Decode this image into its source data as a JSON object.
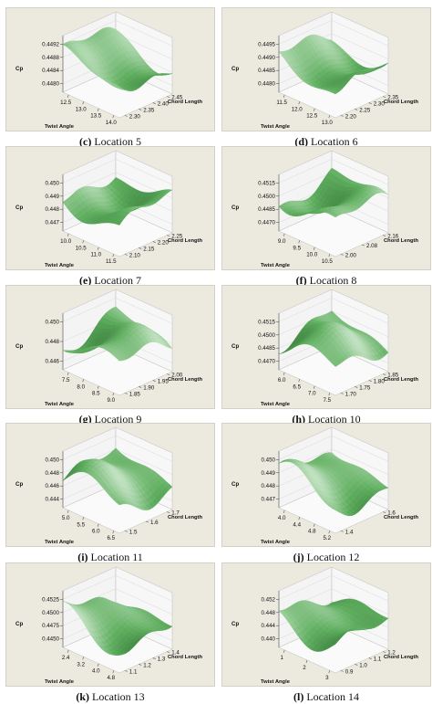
{
  "figure": {
    "panels": [
      {
        "letter": "(c)",
        "caption": "Location 5",
        "cp_ticks": [
          "0.4492",
          "0.4488",
          "0.4484",
          "0.4480"
        ],
        "twist_ticks": [
          "12.5",
          "13.0",
          "13.5",
          "14.0"
        ],
        "chord_ticks": [
          "2.45",
          "2.40",
          "2.35",
          "2.30"
        ]
      },
      {
        "letter": "(d)",
        "caption": "Location 6",
        "cp_ticks": [
          "0.4495",
          "0.4490",
          "0.4485",
          "0.4480"
        ],
        "twist_ticks": [
          "11.5",
          "12.0",
          "12.5",
          "13.0"
        ],
        "chord_ticks": [
          "2.35",
          "2.30",
          "2.25",
          "2.20"
        ]
      },
      {
        "letter": "(e)",
        "caption": "Location 7",
        "cp_ticks": [
          "0.450",
          "0.449",
          "0.448",
          "0.447"
        ],
        "twist_ticks": [
          "10.0",
          "10.5",
          "11.0",
          "11.5"
        ],
        "chord_ticks": [
          "2.25",
          "2.20",
          "2.15",
          "2.10"
        ]
      },
      {
        "letter": "(f)",
        "caption": "Location 8",
        "cp_ticks": [
          "0.4515",
          "0.4500",
          "0.4485",
          "0.4470"
        ],
        "twist_ticks": [
          "9.0",
          "9.5",
          "10.0",
          "10.5"
        ],
        "chord_ticks": [
          "2.16",
          "2.08",
          "2.00"
        ]
      },
      {
        "letter": "(g)",
        "caption": "Location 9",
        "cp_ticks": [
          "0.450",
          "0.448",
          "0.446"
        ],
        "twist_ticks": [
          "7.5",
          "8.0",
          "8.5",
          "9.0"
        ],
        "chord_ticks": [
          "2.00",
          "1.95",
          "1.90",
          "1.85"
        ]
      },
      {
        "letter": "(h)",
        "caption": "Location 10",
        "cp_ticks": [
          "0.4515",
          "0.4500",
          "0.4485",
          "0.4470"
        ],
        "twist_ticks": [
          "6.0",
          "6.5",
          "7.0",
          "7.5"
        ],
        "chord_ticks": [
          "1.85",
          "1.80",
          "1.75",
          "1.70"
        ]
      },
      {
        "letter": "(i)",
        "caption": "Location 11",
        "cp_ticks": [
          "0.450",
          "0.448",
          "0.446",
          "0.444"
        ],
        "twist_ticks": [
          "5.0",
          "5.5",
          "6.0",
          "6.5"
        ],
        "chord_ticks": [
          "1.7",
          "1.6",
          "1.5"
        ]
      },
      {
        "letter": "(j)",
        "caption": "Location 12",
        "cp_ticks": [
          "0.450",
          "0.449",
          "0.448",
          "0.447"
        ],
        "twist_ticks": [
          "4.0",
          "4.4",
          "4.8",
          "5.2"
        ],
        "chord_ticks": [
          "1.6",
          "1.4"
        ]
      },
      {
        "letter": "(k)",
        "caption": "Location 13",
        "cp_ticks": [
          "0.4525",
          "0.4500",
          "0.4475",
          "0.4450"
        ],
        "twist_ticks": [
          "2.4",
          "3.2",
          "4.0",
          "4.8"
        ],
        "chord_ticks": [
          "1.4",
          "1.3",
          "1.2",
          "1.1"
        ]
      },
      {
        "letter": "(l)",
        "caption": "Location 14",
        "cp_ticks": [
          "0.452",
          "0.448",
          "0.444",
          "0.440"
        ],
        "twist_ticks": [
          "1",
          "2",
          "3"
        ],
        "chord_ticks": [
          "1.2",
          "1.1",
          "1.0",
          "0.9"
        ]
      }
    ],
    "axis_labels": {
      "cp": "Cp",
      "twist": "Twist Angle",
      "chord": "Chord Length"
    },
    "colors": {
      "surface_light": "#e6f5e6",
      "surface_mid": "#5fae5f",
      "surface_dark": "#1f5e24",
      "panel_bg": "#ece9df"
    }
  }
}
